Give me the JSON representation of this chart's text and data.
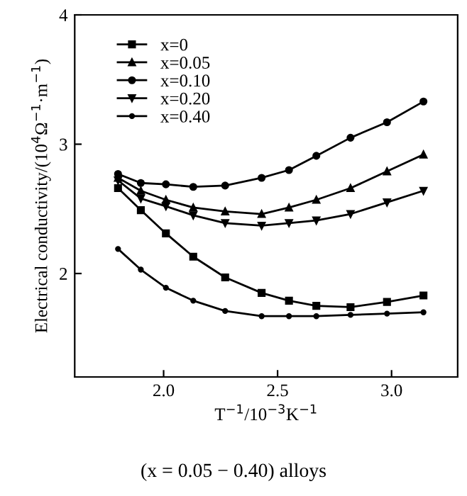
{
  "chart_data": {
    "type": "line",
    "xlabel": "T$^{−1}$/10$^{−3}$K$^{−1}$",
    "ylabel": "Electrical conductivity/(10$^{4}$Ω$^{−1}$·m$^{−1}$)",
    "x": [
      1.8,
      1.9,
      2.01,
      2.13,
      2.27,
      2.43,
      2.55,
      2.67,
      2.82,
      2.98,
      3.14
    ],
    "xlim": [
      1.61,
      3.29
    ],
    "ylim": [
      1.2,
      4
    ],
    "xticks": [
      {
        "value": 2,
        "label": "2.0"
      },
      {
        "value": 2.5,
        "label": "2.5"
      },
      {
        "value": 3,
        "label": "3.0"
      }
    ],
    "yticks": [
      2,
      3,
      4
    ],
    "series": [
      {
        "name": "x=0",
        "color": "#000000",
        "marker": "square",
        "values": [
          2.66,
          2.49,
          2.31,
          2.13,
          1.97,
          1.85,
          1.79,
          1.75,
          1.74,
          1.78,
          1.83
        ]
      },
      {
        "name": "x=0.05",
        "color": "#000000",
        "marker": "triangle",
        "values": [
          2.74,
          2.64,
          2.57,
          2.51,
          2.48,
          2.46,
          2.51,
          2.57,
          2.66,
          2.79,
          2.92
        ]
      },
      {
        "name": "x=0.10",
        "color": "#000000",
        "marker": "circle",
        "values": [
          2.77,
          2.7,
          2.69,
          2.67,
          2.68,
          2.74,
          2.8,
          2.91,
          3.05,
          3.17,
          3.33
        ]
      },
      {
        "name": "x=0.20",
        "color": "#000000",
        "marker": "triangle_down",
        "values": [
          2.72,
          2.58,
          2.52,
          2.45,
          2.39,
          2.37,
          2.39,
          2.41,
          2.46,
          2.55,
          2.64
        ]
      },
      {
        "name": "x=0.40",
        "color": "#000000",
        "marker": "point",
        "values": [
          2.19,
          2.03,
          1.89,
          1.79,
          1.71,
          1.67,
          1.67,
          1.67,
          1.68,
          1.69,
          1.7
        ]
      }
    ],
    "legend": "top left",
    "grid": false,
    "annotations": [
      "(x = 0.05 − 0.40) alloys"
    ]
  }
}
